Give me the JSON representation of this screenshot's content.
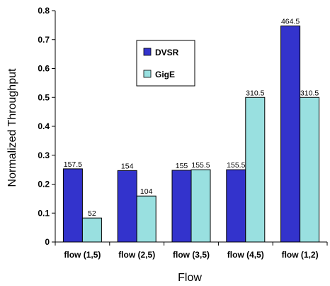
{
  "chart_data": {
    "type": "bar",
    "categories": [
      "flow (1,5)",
      "flow (2,5)",
      "flow (3,5)",
      "flow (4,5)",
      "flow (1,2)"
    ],
    "series": [
      {
        "name": "DVSR",
        "values": [
          0.253,
          0.247,
          0.248,
          0.25,
          0.747
        ],
        "data_labels": [
          "157.5",
          "154",
          "155",
          "155.5",
          "464.5"
        ],
        "color": "#3333cc"
      },
      {
        "name": "GigE",
        "values": [
          0.083,
          0.159,
          0.25,
          0.5,
          0.5
        ],
        "data_labels": [
          "52",
          "104",
          "155.5",
          "310.5",
          "310.5"
        ],
        "color": "#99e0e0"
      }
    ],
    "xlabel": "Flow",
    "ylabel": "Normalized Throughput",
    "ylim": [
      0,
      0.8
    ],
    "yticks": [
      "0",
      "0.1",
      "0.2",
      "0.3",
      "0.4",
      "0.5",
      "0.6",
      "0.7",
      "0.8"
    ],
    "grid": false,
    "legend_position": "upper-left inside plot"
  }
}
